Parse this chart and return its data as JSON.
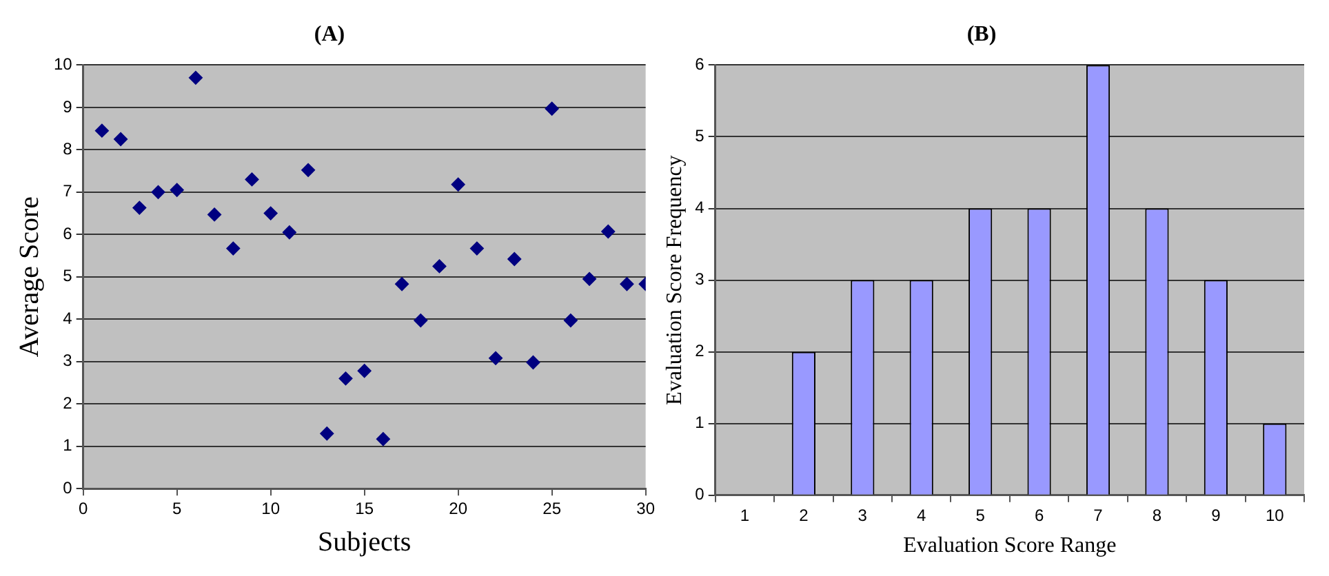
{
  "chart_data": [
    {
      "type": "scatter",
      "title": "(A)",
      "xlabel": "Subjects",
      "ylabel": "Average Score",
      "x": [
        1,
        2,
        3,
        4,
        5,
        6,
        7,
        8,
        9,
        10,
        11,
        12,
        13,
        14,
        15,
        16,
        17,
        18,
        19,
        20,
        21,
        22,
        23,
        24,
        25,
        26,
        27,
        28,
        29,
        30
      ],
      "series": [
        {
          "color": "#000080",
          "values": [
            8.45,
            8.25,
            6.63,
            7.0,
            7.05,
            9.7,
            6.47,
            5.67,
            7.3,
            6.5,
            6.05,
            7.52,
            1.3,
            2.6,
            2.78,
            1.17,
            4.83,
            3.97,
            5.25,
            7.18,
            5.67,
            3.08,
            5.42,
            2.98,
            8.97,
            3.97,
            4.95,
            6.07,
            4.83,
            4.83
          ]
        }
      ],
      "xlim": [
        0,
        30
      ],
      "xticks": [
        0,
        5,
        10,
        15,
        20,
        25,
        30
      ],
      "ylim": [
        0,
        10
      ],
      "yticks": [
        0,
        1,
        2,
        3,
        4,
        5,
        6,
        7,
        8,
        9,
        10
      ],
      "marker": "diamond",
      "grid": "y",
      "legend": false
    },
    {
      "type": "bar",
      "title": "(B)",
      "xlabel": "Evaluation Score Range",
      "ylabel": "Evaluation Score Frequency",
      "categories": [
        "1",
        "2",
        "3",
        "4",
        "5",
        "6",
        "7",
        "8",
        "9",
        "10"
      ],
      "series": [
        {
          "color": "#9999ff",
          "values": [
            0,
            2,
            3,
            3,
            4,
            4,
            6,
            4,
            3,
            1
          ]
        }
      ],
      "ylim": [
        0,
        6
      ],
      "yticks": [
        0,
        1,
        2,
        3,
        4,
        5,
        6
      ],
      "grid": "y",
      "legend": false
    }
  ]
}
